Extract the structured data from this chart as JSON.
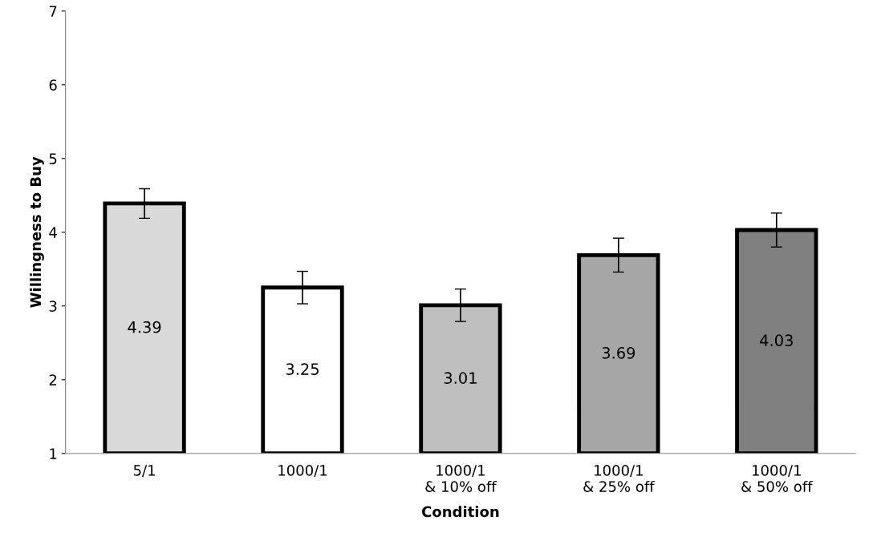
{
  "chart_data": {
    "type": "bar",
    "xlabel": "Condition",
    "ylabel": "Willingness to Buy",
    "categories": [
      "5/1",
      "1000/1",
      "1000/1\n& 10% off",
      "1000/1\n& 25% off",
      "1000/1\n& 50% off"
    ],
    "values": [
      4.39,
      3.25,
      3.01,
      3.69,
      4.03
    ],
    "errors": [
      0.2,
      0.22,
      0.22,
      0.23,
      0.23
    ],
    "colors": [
      "#d9d9d9",
      "#ffffff",
      "#bfbfbf",
      "#a6a6a6",
      "#808080"
    ],
    "ylim": [
      1,
      7
    ],
    "yticks": [
      1,
      2,
      3,
      4,
      5,
      6,
      7
    ],
    "data_labels": true,
    "grid": false,
    "legend": false
  }
}
